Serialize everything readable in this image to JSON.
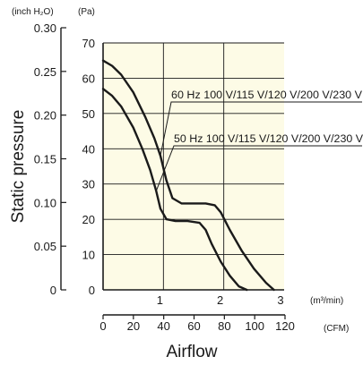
{
  "chart_data": {
    "type": "line",
    "title": "",
    "xlabel": "Airflow",
    "ylabel": "Static pressure",
    "colors": {
      "plot_bg": "#fdfbe6",
      "line": "#1a1a1a",
      "grid": "#1a1a1a"
    },
    "grid": true,
    "axes": {
      "x_primary": {
        "unit": "(m³/min)",
        "range": [
          0,
          3
        ],
        "ticks": [
          "0",
          "1",
          "2",
          "3"
        ]
      },
      "x_secondary": {
        "unit": "(CFM)",
        "range": [
          0,
          120
        ],
        "ticks": [
          "0",
          "20",
          "40",
          "60",
          "80",
          "100",
          "120"
        ]
      },
      "y_primary": {
        "unit": "(Pa)",
        "range": [
          0,
          70
        ],
        "ticks": [
          "0",
          "10",
          "20",
          "30",
          "40",
          "50",
          "60",
          "70"
        ]
      },
      "y_secondary": {
        "unit": "(inch H₂O)",
        "range": [
          0,
          0.3
        ],
        "ticks": [
          "0",
          "0.05",
          "0.10",
          "0.15",
          "0.20",
          "0.25",
          "0.30"
        ]
      }
    },
    "series": [
      {
        "name": "60 Hz 100 V/115 V/120 V/200 V/230 V",
        "x": [
          0,
          0.15,
          0.3,
          0.5,
          0.7,
          0.85,
          0.95,
          1.05,
          1.15,
          1.3,
          1.5,
          1.7,
          1.85,
          1.95,
          2.1,
          2.3,
          2.5,
          2.7,
          2.83
        ],
        "y": [
          65,
          63.5,
          61,
          56,
          49,
          43,
          38,
          31,
          26,
          24.5,
          24.5,
          24.5,
          24,
          22,
          17,
          11,
          6,
          2,
          0
        ]
      },
      {
        "name": "50 Hz 100 V/115 V/120 V/200 V/230 V",
        "x": [
          0,
          0.15,
          0.3,
          0.5,
          0.65,
          0.78,
          0.88,
          0.95,
          1.05,
          1.2,
          1.4,
          1.6,
          1.7,
          1.8,
          1.95,
          2.1,
          2.25,
          2.38
        ],
        "y": [
          57,
          55,
          52,
          46,
          40,
          34,
          28,
          23,
          20,
          19.5,
          19.5,
          19,
          17,
          13,
          8,
          4,
          1,
          0
        ]
      }
    ]
  }
}
